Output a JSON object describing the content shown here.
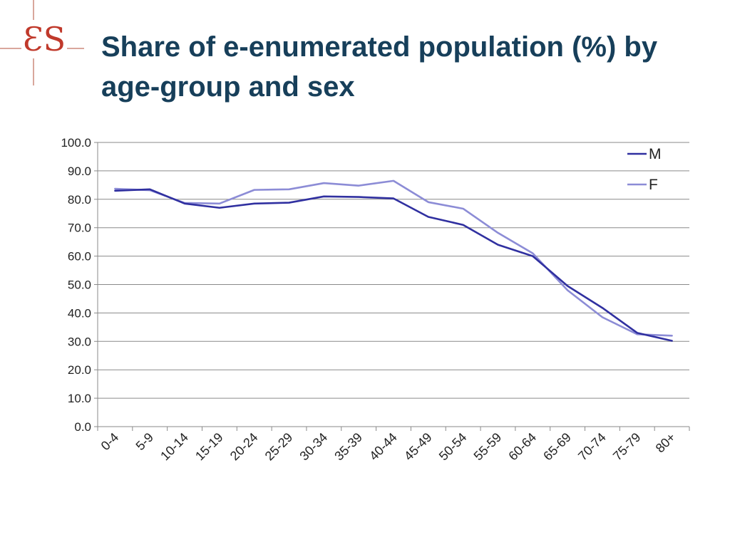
{
  "logo": {
    "text": "ƐS"
  },
  "title": "Share of e-enumerated population (%) by age-group and sex",
  "chart_data": {
    "type": "line",
    "title": "Share of e-enumerated population (%) by age-group and sex",
    "xlabel": "",
    "ylabel": "",
    "categories": [
      "0-4",
      "5-9",
      "10-14",
      "15-19",
      "20-24",
      "25-29",
      "30-34",
      "35-39",
      "40-44",
      "45-49",
      "50-54",
      "55-59",
      "60-64",
      "65-69",
      "70-74",
      "75-79",
      "80+"
    ],
    "ylim": [
      0,
      100
    ],
    "yticks": [
      "0.0",
      "10.0",
      "20.0",
      "30.0",
      "40.0",
      "50.0",
      "60.0",
      "70.0",
      "80.0",
      "90.0",
      "100.0"
    ],
    "grid": true,
    "legend_position": "top-right",
    "series": [
      {
        "name": "M",
        "color": "#3030a0",
        "values": [
          83.0,
          83.5,
          78.5,
          77.0,
          78.5,
          78.8,
          81.0,
          80.8,
          80.3,
          73.8,
          71.0,
          64.0,
          60.0,
          49.5,
          41.8,
          33.0,
          30.2
        ]
      },
      {
        "name": "F",
        "color": "#8c8cd6",
        "values": [
          83.7,
          83.2,
          78.7,
          78.5,
          83.3,
          83.5,
          85.7,
          84.8,
          86.5,
          79.0,
          76.7,
          68.2,
          61.0,
          48.0,
          38.5,
          32.5,
          32.0
        ]
      }
    ]
  }
}
